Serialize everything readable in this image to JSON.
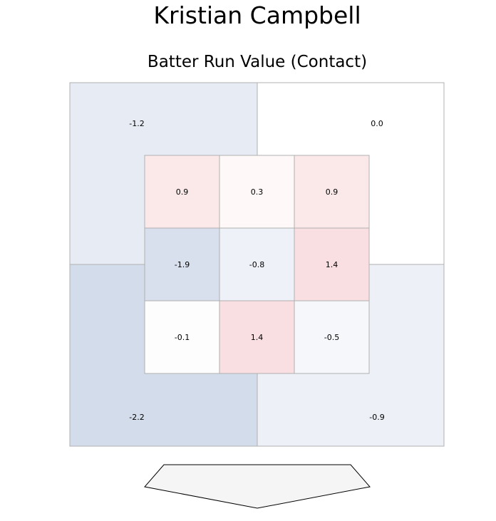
{
  "player_name": "Kristian Campbell",
  "chart_title": "Batter Run Value (Contact)",
  "chart_data": {
    "type": "heatmap",
    "title": "Batter Run Value (Contact)",
    "outer_zones": [
      {
        "zone": "top-left",
        "value": -1.2,
        "label": "-1.2",
        "color": "#e6ebf4"
      },
      {
        "zone": "top-right",
        "value": 0.0,
        "label": "0.0",
        "color": "#ffffff"
      },
      {
        "zone": "bottom-left",
        "value": -2.2,
        "label": "-2.2",
        "color": "#d3dcea"
      },
      {
        "zone": "bottom-right",
        "value": -0.9,
        "label": "-0.9",
        "color": "#edf0f7"
      }
    ],
    "inner_zones": [
      [
        {
          "value": 0.9,
          "label": "0.9",
          "color": "#fbe9ea"
        },
        {
          "value": 0.3,
          "label": "0.3",
          "color": "#fef8f8"
        },
        {
          "value": 0.9,
          "label": "0.9",
          "color": "#fbe9ea"
        }
      ],
      [
        {
          "value": -1.9,
          "label": "-1.9",
          "color": "#d9e0ed"
        },
        {
          "value": -0.8,
          "label": "-0.8",
          "color": "#eef1f8"
        },
        {
          "value": 1.4,
          "label": "1.4",
          "color": "#fadfe2"
        }
      ],
      [
        {
          "value": -0.1,
          "label": "-0.1",
          "color": "#fdfdfe"
        },
        {
          "value": 1.4,
          "label": "1.4",
          "color": "#fadfe2"
        },
        {
          "value": -0.5,
          "label": "-0.5",
          "color": "#f6f7fa"
        }
      ]
    ],
    "colors": {
      "grid_line": "#b0b0b0",
      "home_plate_fill": "#f5f5f5",
      "home_plate_stroke": "#000000"
    }
  }
}
